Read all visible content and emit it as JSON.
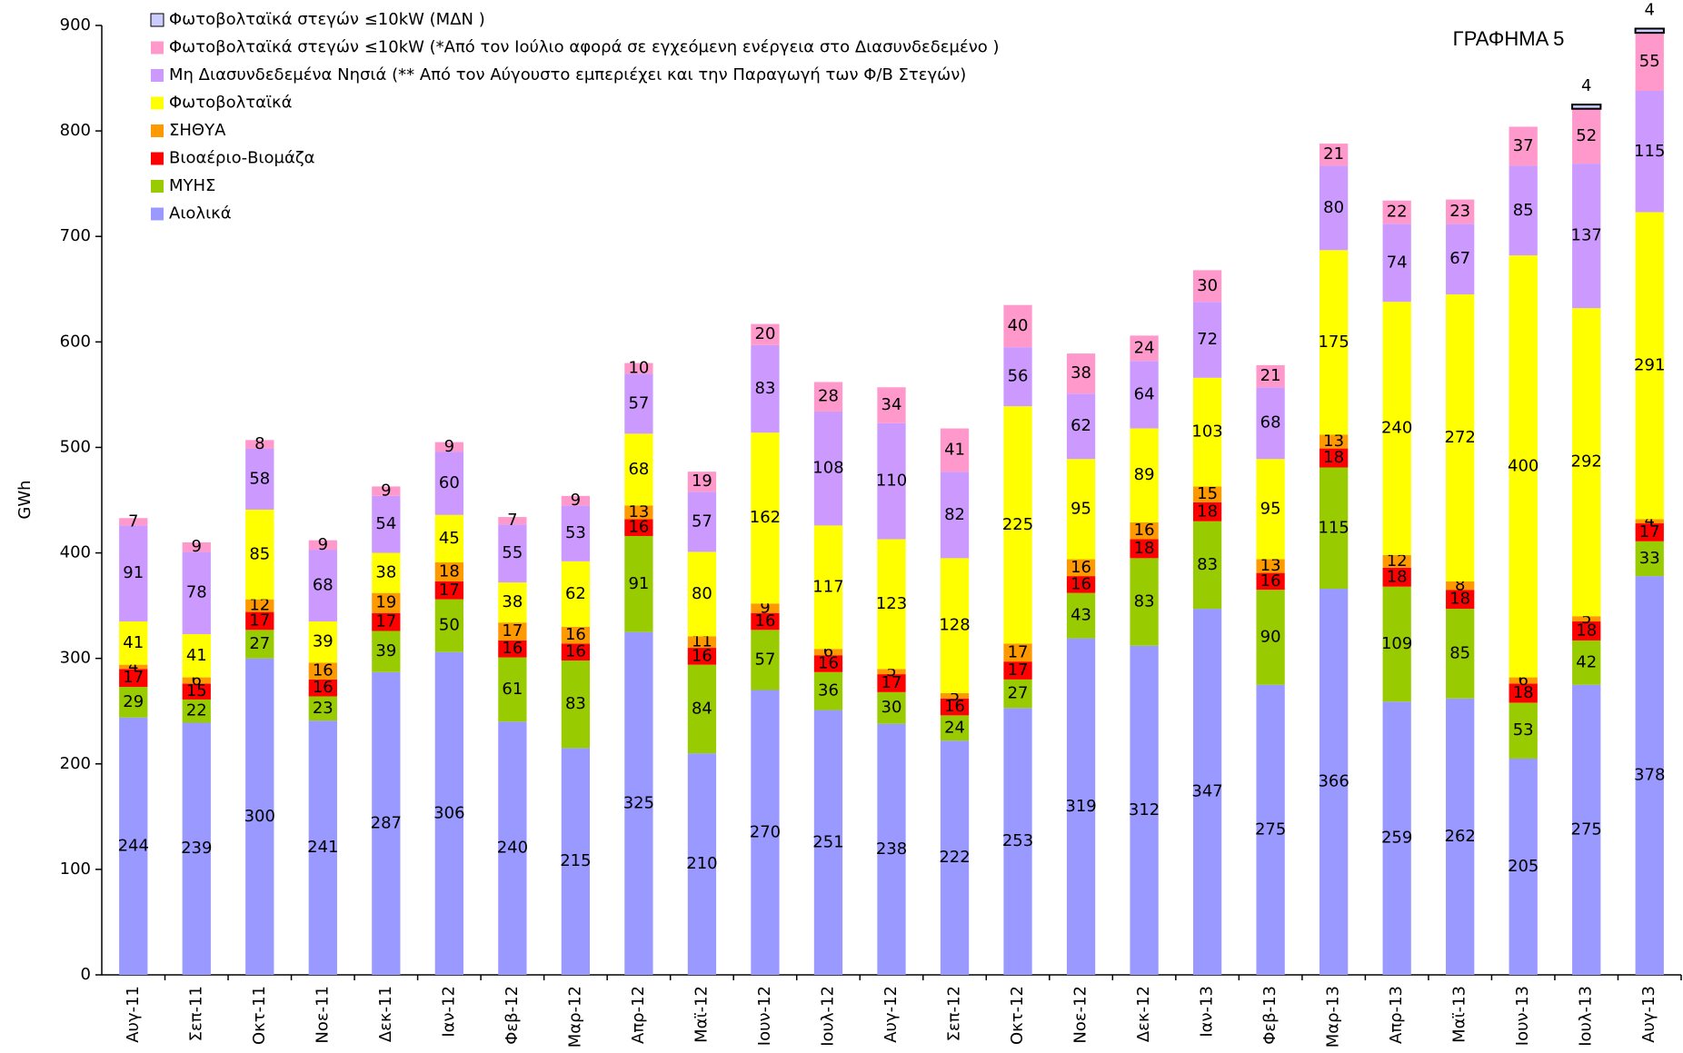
{
  "chart_data": {
    "type": "stacked-bar",
    "title": "ΓΡΑΦΗΜΑ 5",
    "y_label": "GWh",
    "categories": [
      "Αυγ-11",
      "Σεπ-11",
      "Οκτ-11",
      "Νοε-11",
      "Δεκ-11",
      "Ιαν-12",
      "Φεβ-12",
      "Μαρ-12",
      "Απρ-12",
      "Μαϊ-12",
      "Ιουν-12",
      "Ιουλ-12",
      "Αυγ-12",
      "Σεπ-12",
      "Οκτ-12",
      "Νοε-12",
      "Δεκ-12",
      "Ιαν-13",
      "Φεβ-13",
      "Μαρ-13",
      "Απρ-13",
      "Μαϊ-13",
      "Ιουν-13",
      "Ιουλ-13",
      "Αυγ-13"
    ],
    "series": [
      {
        "name": "Αιολικά",
        "color": "#9999ff",
        "values": [
          244,
          239,
          300,
          241,
          287,
          306,
          240,
          215,
          325,
          210,
          270,
          251,
          238,
          222,
          253,
          319,
          312,
          347,
          275,
          366,
          259,
          262,
          205,
          275,
          378
        ]
      },
      {
        "name": "ΜΥΗΣ",
        "color": "#99cc00",
        "values": [
          29,
          22,
          27,
          23,
          39,
          50,
          61,
          83,
          91,
          84,
          57,
          36,
          30,
          24,
          27,
          43,
          83,
          83,
          90,
          115,
          109,
          85,
          53,
          42,
          33
        ]
      },
      {
        "name": "Βιοαέριο-Βιομάζα",
        "color": "#ff0000",
        "values": [
          17,
          15,
          17,
          16,
          17,
          17,
          16,
          16,
          16,
          16,
          16,
          16,
          17,
          16,
          17,
          16,
          18,
          18,
          16,
          18,
          18,
          18,
          18,
          18,
          17
        ]
      },
      {
        "name": "ΣΗΘΥΑ",
        "color": "#ff9900",
        "values": [
          4,
          6,
          12,
          16,
          19,
          18,
          17,
          16,
          13,
          11,
          9,
          6,
          5,
          5,
          17,
          16,
          16,
          15,
          13,
          13,
          12,
          8,
          6,
          5,
          4
        ]
      },
      {
        "name": "Φωτοβολταϊκά",
        "color": "#ffff00",
        "values": [
          41,
          41,
          85,
          39,
          38,
          45,
          38,
          62,
          68,
          80,
          162,
          117,
          123,
          128,
          225,
          95,
          89,
          103,
          95,
          175,
          240,
          272,
          400,
          292,
          291
        ]
      },
      {
        "name": "Μη Διασυνδεδεμένα Νησιά (** Από τον Αύγουστο εμπεριέχει και την Παραγωγή των Φ/Β Στεγών)",
        "color": "#cc99ff",
        "values": [
          91,
          78,
          58,
          68,
          54,
          60,
          55,
          53,
          57,
          57,
          83,
          108,
          110,
          82,
          56,
          62,
          64,
          72,
          68,
          80,
          74,
          67,
          85,
          137,
          115
        ]
      },
      {
        "name": "Φωτοβολταϊκά στεγών ≤10kW (*Από τον Ιούλιο αφορά σε εγχεόμενη ενέργεια στο Διασυνδεδεμένο )",
        "color": "#ff99cc",
        "values": [
          7,
          9,
          8,
          9,
          9,
          9,
          7,
          9,
          10,
          19,
          20,
          28,
          34,
          41,
          40,
          38,
          24,
          30,
          21,
          21,
          22,
          23,
          37,
          52,
          55
        ]
      },
      {
        "name": "Φωτοβολταϊκά στεγών ≤10kW (ΜΔΝ )",
        "color": "#ccccff",
        "values": [
          null,
          null,
          null,
          null,
          null,
          null,
          null,
          null,
          null,
          null,
          null,
          null,
          null,
          null,
          null,
          null,
          null,
          null,
          null,
          null,
          null,
          null,
          null,
          4,
          4
        ]
      }
    ],
    "ylim": [
      0,
      900
    ],
    "yticks": [
      0,
      100,
      200,
      300,
      400,
      500,
      600,
      700,
      800,
      900
    ]
  }
}
